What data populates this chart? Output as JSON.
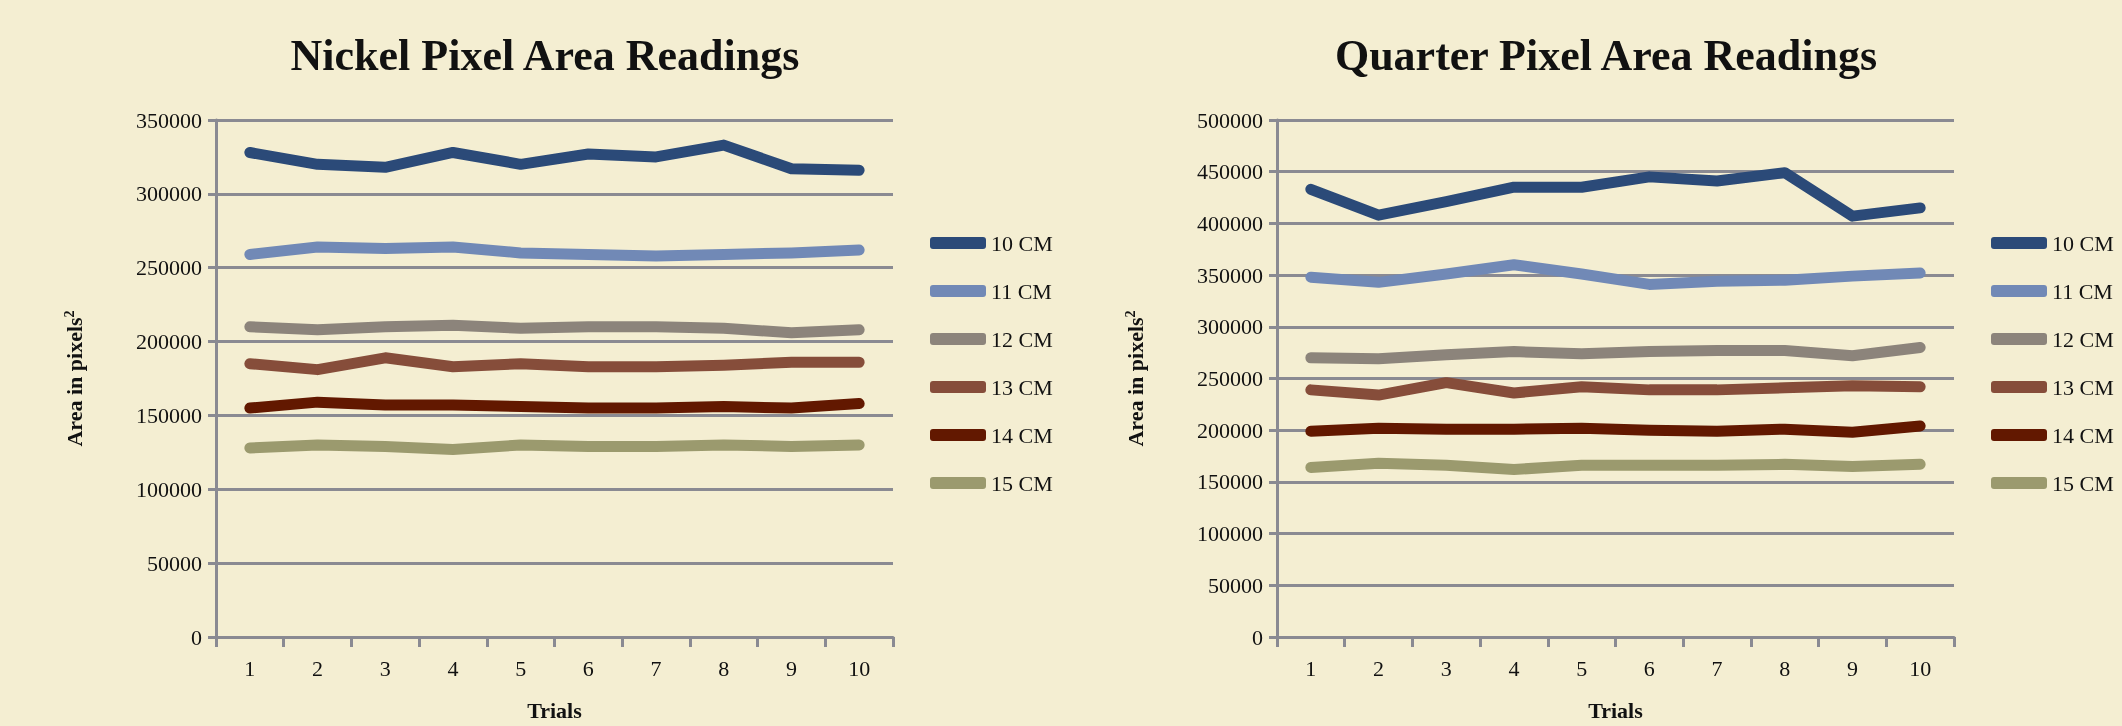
{
  "chart_data": [
    {
      "type": "line",
      "title": "Nickel Pixel Area Readings",
      "xlabel": "Trials",
      "ylabel": "Area in pixels$^{2}$",
      "categories": [
        "1",
        "2",
        "3",
        "4",
        "5",
        "6",
        "7",
        "8",
        "9",
        "10"
      ],
      "series": [
        {
          "name": "10 CM",
          "color": "#2b4a78",
          "values": [
            328000,
            320000,
            318000,
            328000,
            320000,
            327000,
            325000,
            333000,
            317000,
            316000
          ]
        },
        {
          "name": "11 CM",
          "color": "#7189b6",
          "values": [
            259000,
            264000,
            263000,
            264000,
            260000,
            259000,
            258000,
            259000,
            260000,
            262000
          ]
        },
        {
          "name": "12 CM",
          "color": "#8c847b",
          "values": [
            210000,
            208000,
            210000,
            211000,
            209000,
            210000,
            210000,
            209000,
            206000,
            208000
          ]
        },
        {
          "name": "13 CM",
          "color": "#864d3a",
          "values": [
            185000,
            181000,
            189000,
            183000,
            185000,
            183000,
            183000,
            184000,
            186000,
            186000
          ]
        },
        {
          "name": "14 CM",
          "color": "#621800",
          "values": [
            155000,
            159000,
            157000,
            157000,
            156000,
            155000,
            155000,
            156000,
            155000,
            158000
          ]
        },
        {
          "name": "15 CM",
          "color": "#9b9a6e",
          "values": [
            128000,
            130000,
            129000,
            127000,
            130000,
            129000,
            129000,
            130000,
            129000,
            130000
          ]
        }
      ],
      "ylim": [
        0,
        350000
      ],
      "yticks": [
        0,
        50000,
        100000,
        150000,
        200000,
        250000,
        300000,
        350000
      ],
      "grid": "y",
      "legend": "right",
      "line_style": "solid"
    },
    {
      "type": "line",
      "title": "Quarter Pixel Area Readings",
      "xlabel": "Trials",
      "ylabel": "Area in pixels$^{2}$",
      "categories": [
        "1",
        "2",
        "3",
        "4",
        "5",
        "6",
        "7",
        "8",
        "9",
        "10"
      ],
      "series": [
        {
          "name": "10 CM",
          "color": "#2b4a78",
          "values": [
            433000,
            408000,
            421000,
            435000,
            435000,
            445000,
            441000,
            449000,
            407000,
            415000
          ]
        },
        {
          "name": "11 CM",
          "color": "#7189b6",
          "values": [
            348000,
            343000,
            351000,
            360000,
            351000,
            341000,
            344000,
            345000,
            349000,
            352000
          ]
        },
        {
          "name": "12 CM",
          "color": "#8c847b",
          "values": [
            270000,
            269000,
            273000,
            276000,
            274000,
            276000,
            277000,
            277000,
            272000,
            280000
          ]
        },
        {
          "name": "13 CM",
          "color": "#864d3a",
          "values": [
            239000,
            234000,
            246000,
            236000,
            242000,
            239000,
            239000,
            241000,
            243000,
            242000
          ]
        },
        {
          "name": "14 CM",
          "color": "#621800",
          "values": [
            199000,
            202000,
            201000,
            201000,
            202000,
            200000,
            199000,
            201000,
            198000,
            204000
          ]
        },
        {
          "name": "15 CM",
          "color": "#9b9a6e",
          "values": [
            164000,
            168000,
            166000,
            162000,
            166000,
            166000,
            166000,
            167000,
            165000,
            167000
          ]
        }
      ],
      "ylim": [
        0,
        500000
      ],
      "yticks": [
        0,
        50000,
        100000,
        150000,
        200000,
        250000,
        300000,
        350000,
        400000,
        450000,
        500000
      ],
      "grid": "y",
      "legend": "right",
      "line_style": "solid"
    }
  ]
}
